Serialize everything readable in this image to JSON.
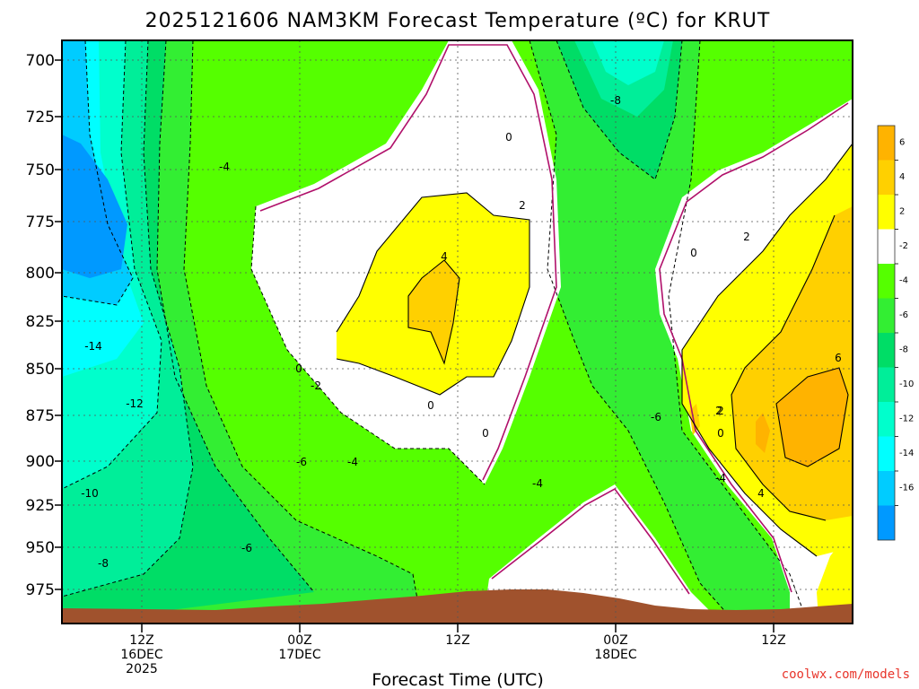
{
  "chart_data": {
    "type": "heatmap",
    "title": "2025121606 NAM3KM Forecast Temperature (ºC) for KRUT",
    "xlabel": "Forecast Time (UTC)",
    "ylabel": "",
    "y_axis": "pressure (hPa), inverted",
    "y_ticks": [
      "700",
      "725",
      "750",
      "775",
      "800",
      "825",
      "850",
      "875",
      "900",
      "925",
      "950",
      "975"
    ],
    "x_ticks": [
      {
        "line1": "12Z",
        "line2": "16DEC",
        "line3": "2025"
      },
      {
        "line1": "00Z",
        "line2": "17DEC",
        "line3": ""
      },
      {
        "line1": "12Z",
        "line2": "",
        "line3": ""
      },
      {
        "line1": "00Z",
        "line2": "18DEC",
        "line3": ""
      },
      {
        "line1": "12Z",
        "line2": "",
        "line3": ""
      }
    ],
    "colorbar": {
      "labels": [
        "6",
        "4",
        "2",
        "-2",
        "-4",
        "-6",
        "-8",
        "-10",
        "-12",
        "-14",
        "-16"
      ],
      "colors": [
        "#FFB300",
        "#FFD000",
        "#FFFF00",
        "#FFFFFF",
        "#55FF00",
        "#33EE33",
        "#00DD66",
        "#00EE99",
        "#00FFCC",
        "#00FFFF",
        "#00CCFF",
        "#0099FF"
      ]
    },
    "contour_labels": [
      "0",
      "-8",
      "-4",
      "2",
      "0",
      "4",
      "-14",
      "0",
      "-2",
      "-12",
      "2",
      "0",
      "-6",
      "-4",
      "-6",
      "2",
      "0",
      "-4",
      "6",
      "4",
      "-10",
      "-6",
      "-8",
      "2",
      "0",
      "-4"
    ],
    "terrain_color": "#A0522D",
    "credit": "coolwx.com/models"
  }
}
